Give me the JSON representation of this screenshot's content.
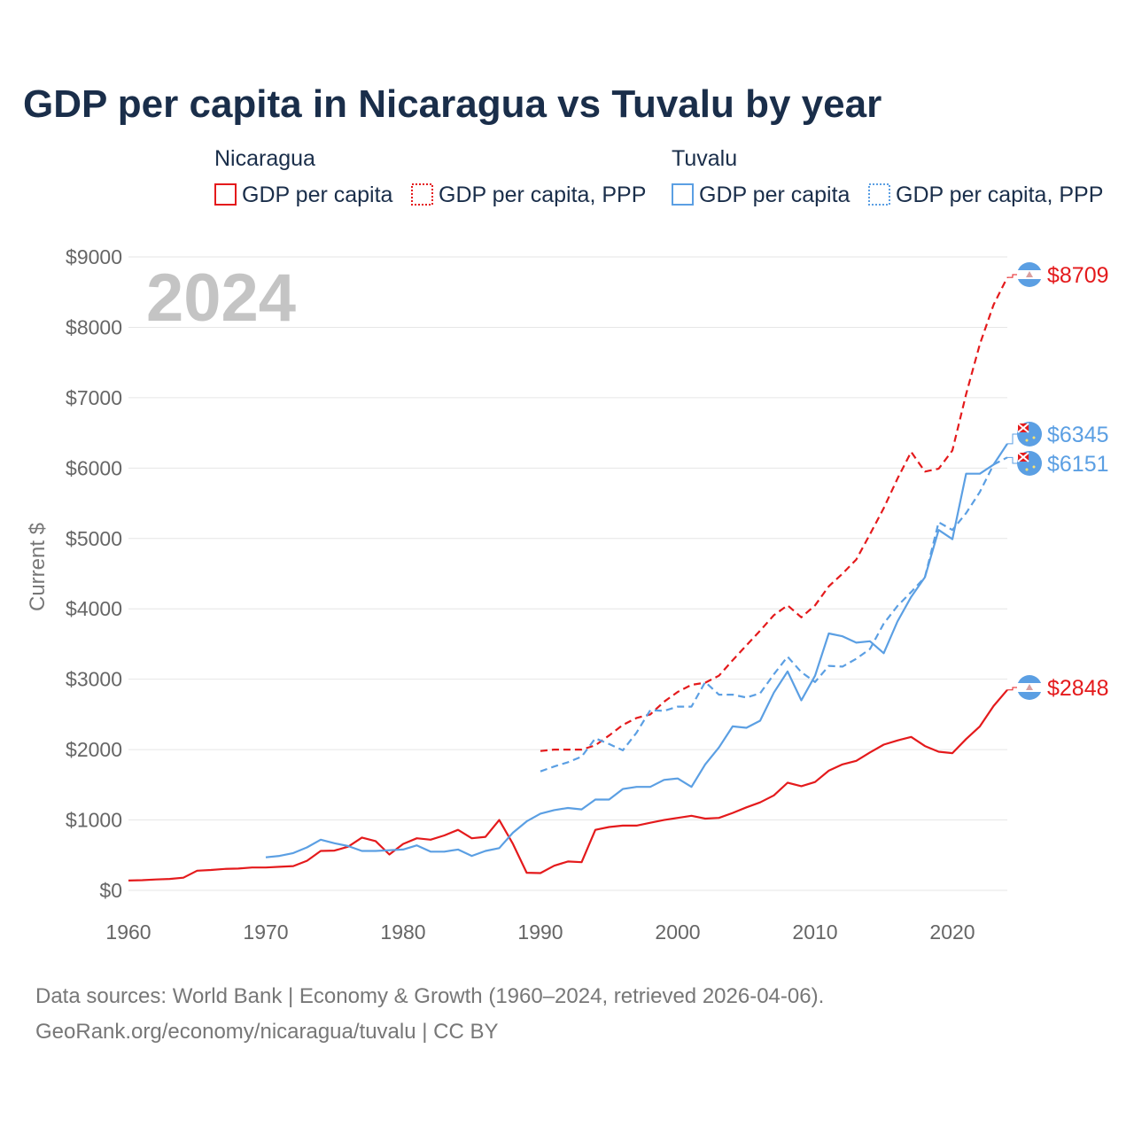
{
  "colors": {
    "nicaragua": "#e41a1c",
    "tuvalu": "#5b9fe3",
    "title": "#1a2e4a",
    "tick": "#666666",
    "grid": "#e6e6e6"
  },
  "chart_data": {
    "type": "line",
    "title": "GDP per capita in Nicaragua vs Tuvalu by year",
    "ylabel": "Current $",
    "xlabel": "",
    "year_label": "2024",
    "xlim": [
      1960,
      2024
    ],
    "ylim": [
      0,
      9000
    ],
    "x_ticks": [
      1960,
      1970,
      1980,
      1990,
      2000,
      2010,
      2020
    ],
    "x_tick_labels": [
      "1960",
      "1970",
      "1980",
      "1990",
      "2000",
      "2010",
      "2020"
    ],
    "y_ticks": [
      0,
      1000,
      2000,
      3000,
      4000,
      5000,
      6000,
      7000,
      8000,
      9000
    ],
    "y_tick_labels": [
      "$0",
      "$1000",
      "$2000",
      "$3000",
      "$4000",
      "$5000",
      "$6000",
      "$7000",
      "$8000",
      "$9000"
    ],
    "legend": {
      "groups": [
        {
          "name": "Nicaragua",
          "items": [
            "GDP per capita",
            "GDP per capita, PPP"
          ]
        },
        {
          "name": "Tuvalu",
          "items": [
            "GDP per capita",
            "GDP per capita, PPP"
          ]
        }
      ]
    },
    "series": [
      {
        "name": "Nicaragua GDP per capita",
        "country": "nicaragua",
        "style": "solid",
        "start": 1960,
        "values": [
          140,
          145,
          155,
          162,
          180,
          280,
          290,
          305,
          310,
          325,
          325,
          335,
          345,
          420,
          560,
          565,
          620,
          750,
          700,
          510,
          660,
          740,
          720,
          780,
          860,
          740,
          760,
          1000,
          660,
          250,
          245,
          350,
          410,
          400,
          860,
          900,
          920,
          920,
          960,
          1000,
          1030,
          1060,
          1020,
          1030,
          1100,
          1180,
          1250,
          1350,
          1530,
          1480,
          1540,
          1700,
          1790,
          1840,
          1960,
          2070,
          2130,
          2180,
          2050,
          1970,
          1950,
          2150,
          2330,
          2620,
          2848
        ],
        "end_label": "$2848"
      },
      {
        "name": "Nicaragua GDP per capita, PPP",
        "country": "nicaragua",
        "style": "dashed",
        "start": 1990,
        "values": [
          1980,
          2000,
          2000,
          2000,
          2060,
          2200,
          2350,
          2450,
          2500,
          2680,
          2820,
          2920,
          2950,
          3050,
          3270,
          3480,
          3690,
          3910,
          4050,
          3880,
          4050,
          4320,
          4500,
          4700,
          5060,
          5430,
          5850,
          6230,
          5950,
          5990,
          6250,
          7050,
          7760,
          8320,
          8709
        ],
        "end_label": "$8709"
      },
      {
        "name": "Tuvalu GDP per capita",
        "country": "tuvalu",
        "style": "solid",
        "start": 1970,
        "values": [
          470,
          490,
          530,
          610,
          720,
          670,
          630,
          560,
          560,
          570,
          580,
          640,
          550,
          550,
          580,
          490,
          560,
          600,
          820,
          980,
          1090,
          1140,
          1170,
          1150,
          1290,
          1290,
          1440,
          1470,
          1470,
          1570,
          1590,
          1470,
          1790,
          2030,
          2330,
          2310,
          2410,
          2810,
          3110,
          2700,
          3050,
          3650,
          3610,
          3520,
          3540,
          3370,
          3820,
          4170,
          4450,
          5120,
          4990,
          5920,
          5920,
          6050,
          6345
        ],
        "end_label": "$6345"
      },
      {
        "name": "Tuvalu GDP per capita, PPP",
        "country": "tuvalu",
        "style": "dashed",
        "start": 1990,
        "values": [
          1690,
          1760,
          1820,
          1900,
          2160,
          2080,
          1990,
          2240,
          2560,
          2550,
          2610,
          2610,
          2960,
          2780,
          2780,
          2740,
          2800,
          3070,
          3320,
          3100,
          2960,
          3190,
          3180,
          3290,
          3430,
          3790,
          4040,
          4240,
          4450,
          5230,
          5120,
          5360,
          5660,
          6050,
          6151
        ],
        "end_label": "$6151"
      }
    ]
  },
  "footer": {
    "line1": "Data sources: World Bank | Economy & Growth (1960–2024, retrieved 2026-04-06).",
    "line2": "GeoRank.org/economy/nicaragua/tuvalu | CC BY"
  }
}
